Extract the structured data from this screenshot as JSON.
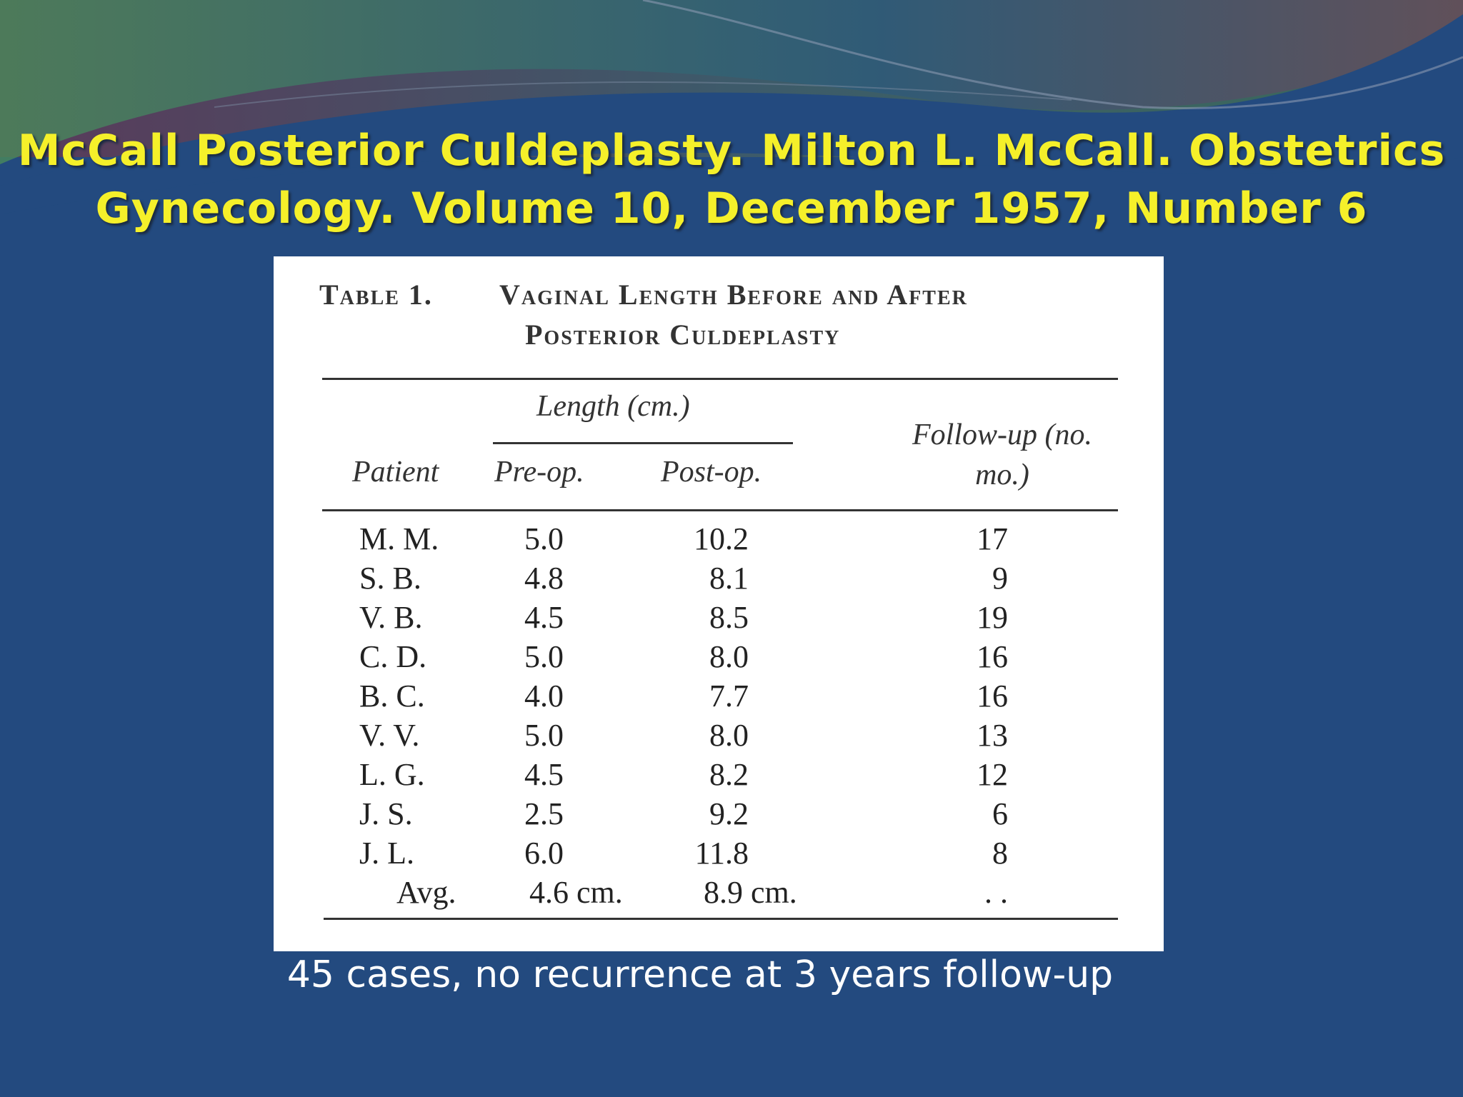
{
  "header": {
    "title_lines": [
      "McCall Posterior Culdeplasty. Milton L. McCall. Obstetrics",
      "Gynecology. Volume 10, December 1957, Number 6"
    ]
  },
  "table": {
    "caption_label": "Table 1.",
    "caption_lines": [
      "Vaginal Length Before and After",
      "Posterior Culdeplasty"
    ],
    "group_header": "Length (cm.)",
    "columns": [
      "Patient",
      "Pre-op.",
      "Post-op.",
      "Follow-up (no. mo.)"
    ],
    "rows": [
      [
        "M. M.",
        "5.0",
        "10.2",
        "17"
      ],
      [
        "S. B.",
        "4.8",
        "8.1",
        "9"
      ],
      [
        "V. B.",
        "4.5",
        "8.5",
        "19"
      ],
      [
        "C. D.",
        "5.0",
        "8.0",
        "16"
      ],
      [
        "B. C.",
        "4.0",
        "7.7",
        "16"
      ],
      [
        "V. V.",
        "5.0",
        "8.0",
        "13"
      ],
      [
        "L. G.",
        "4.5",
        "8.2",
        "12"
      ],
      [
        "J. S.",
        "2.5",
        "9.2",
        "6"
      ],
      [
        "J. L.",
        "6.0",
        "11.8",
        "8"
      ]
    ],
    "average_row": [
      "Avg.",
      "4.6 cm.",
      "8.9 cm.",
      ". ."
    ]
  },
  "footnote": "45 cases, no recurrence at 3 years follow-up"
}
